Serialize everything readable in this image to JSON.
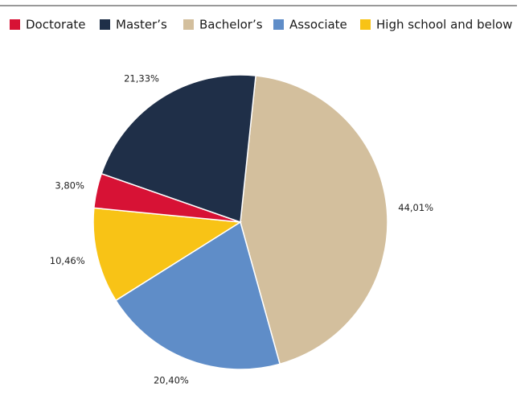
{
  "chart_data": {
    "type": "pie",
    "categories": [
      "Doctorate",
      "Master’s",
      "Bachelor’s",
      "Associate",
      "High school and below"
    ],
    "values": [
      3.8,
      21.33,
      44.01,
      20.4,
      10.46
    ],
    "value_labels": [
      "3,80%",
      "21,33%",
      "44,01%",
      "20,40%",
      "10,46%"
    ],
    "colors": [
      "#d71235",
      "#1f2f48",
      "#d3bf9d",
      "#5f8dc8",
      "#f8c316"
    ]
  }
}
